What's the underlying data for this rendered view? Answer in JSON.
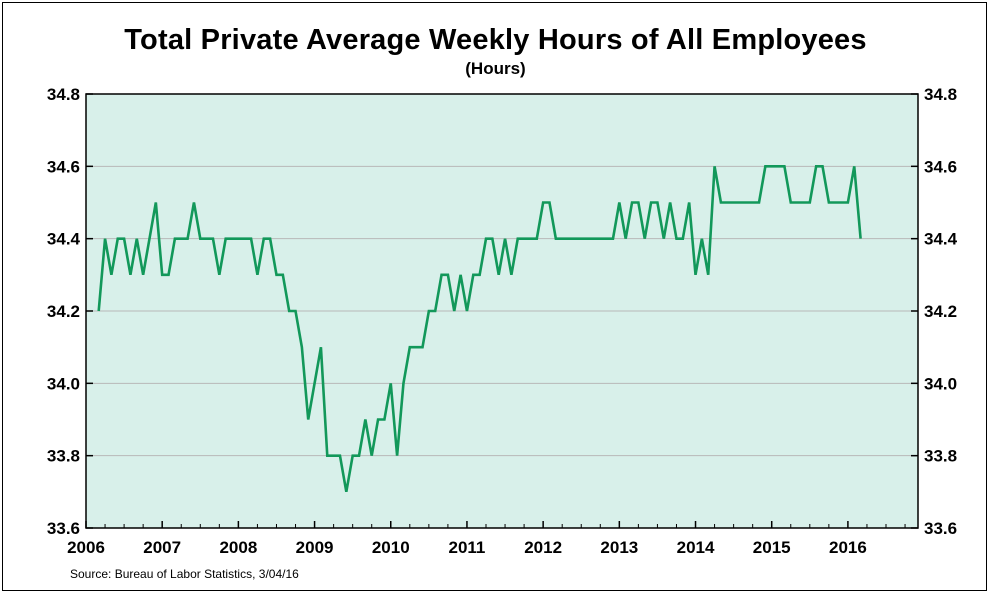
{
  "chart_data": {
    "type": "line",
    "title": "Total Private Average Weekly Hours of All Employees",
    "subtitle": "(Hours)",
    "source": "Source:  Bureau of Labor Statistics, 3/04/16",
    "xlim": [
      2006,
      2016.92
    ],
    "ylim": [
      33.6,
      34.8
    ],
    "x_ticks": [
      2006,
      2007,
      2008,
      2009,
      2010,
      2011,
      2012,
      2013,
      2014,
      2015,
      2016
    ],
    "y_ticks": [
      "33.6",
      "33.8",
      "34.0",
      "34.2",
      "34.4",
      "34.6",
      "34.8"
    ],
    "grid": "horizontal",
    "right_axis": true,
    "colors": {
      "line": "#12985a",
      "plot_bg": "#d8f0ea",
      "grid": "#b8b8b8"
    },
    "series": [
      {
        "start": "2006-03",
        "values": [
          34.2,
          34.4,
          34.3,
          34.4,
          34.4,
          34.3,
          34.4,
          34.3,
          34.4,
          34.5,
          34.3,
          34.3,
          34.4,
          34.4,
          34.4,
          34.5,
          34.4,
          34.4,
          34.4,
          34.3,
          34.4,
          34.4,
          34.4,
          34.4,
          34.4,
          34.3,
          34.4,
          34.4,
          34.3,
          34.3,
          34.2,
          34.2,
          34.1,
          33.9,
          34.0,
          34.1,
          33.8,
          33.8,
          33.8,
          33.7,
          33.8,
          33.8,
          33.9,
          33.8,
          33.9,
          33.9,
          34.0,
          33.8,
          34.0,
          34.1,
          34.1,
          34.1,
          34.2,
          34.2,
          34.3,
          34.3,
          34.2,
          34.3,
          34.2,
          34.3,
          34.3,
          34.4,
          34.4,
          34.3,
          34.4,
          34.3,
          34.4,
          34.4,
          34.4,
          34.4,
          34.5,
          34.5,
          34.4,
          34.4,
          34.4,
          34.4,
          34.4,
          34.4,
          34.4,
          34.4,
          34.4,
          34.4,
          34.5,
          34.4,
          34.5,
          34.5,
          34.4,
          34.5,
          34.5,
          34.4,
          34.5,
          34.4,
          34.4,
          34.5,
          34.3,
          34.4,
          34.3,
          34.6,
          34.5,
          34.5,
          34.5,
          34.5,
          34.5,
          34.5,
          34.5,
          34.6,
          34.6,
          34.6,
          34.6,
          34.5,
          34.5,
          34.5,
          34.5,
          34.6,
          34.6,
          34.5,
          34.5,
          34.5,
          34.5,
          34.6,
          34.4
        ]
      }
    ]
  }
}
